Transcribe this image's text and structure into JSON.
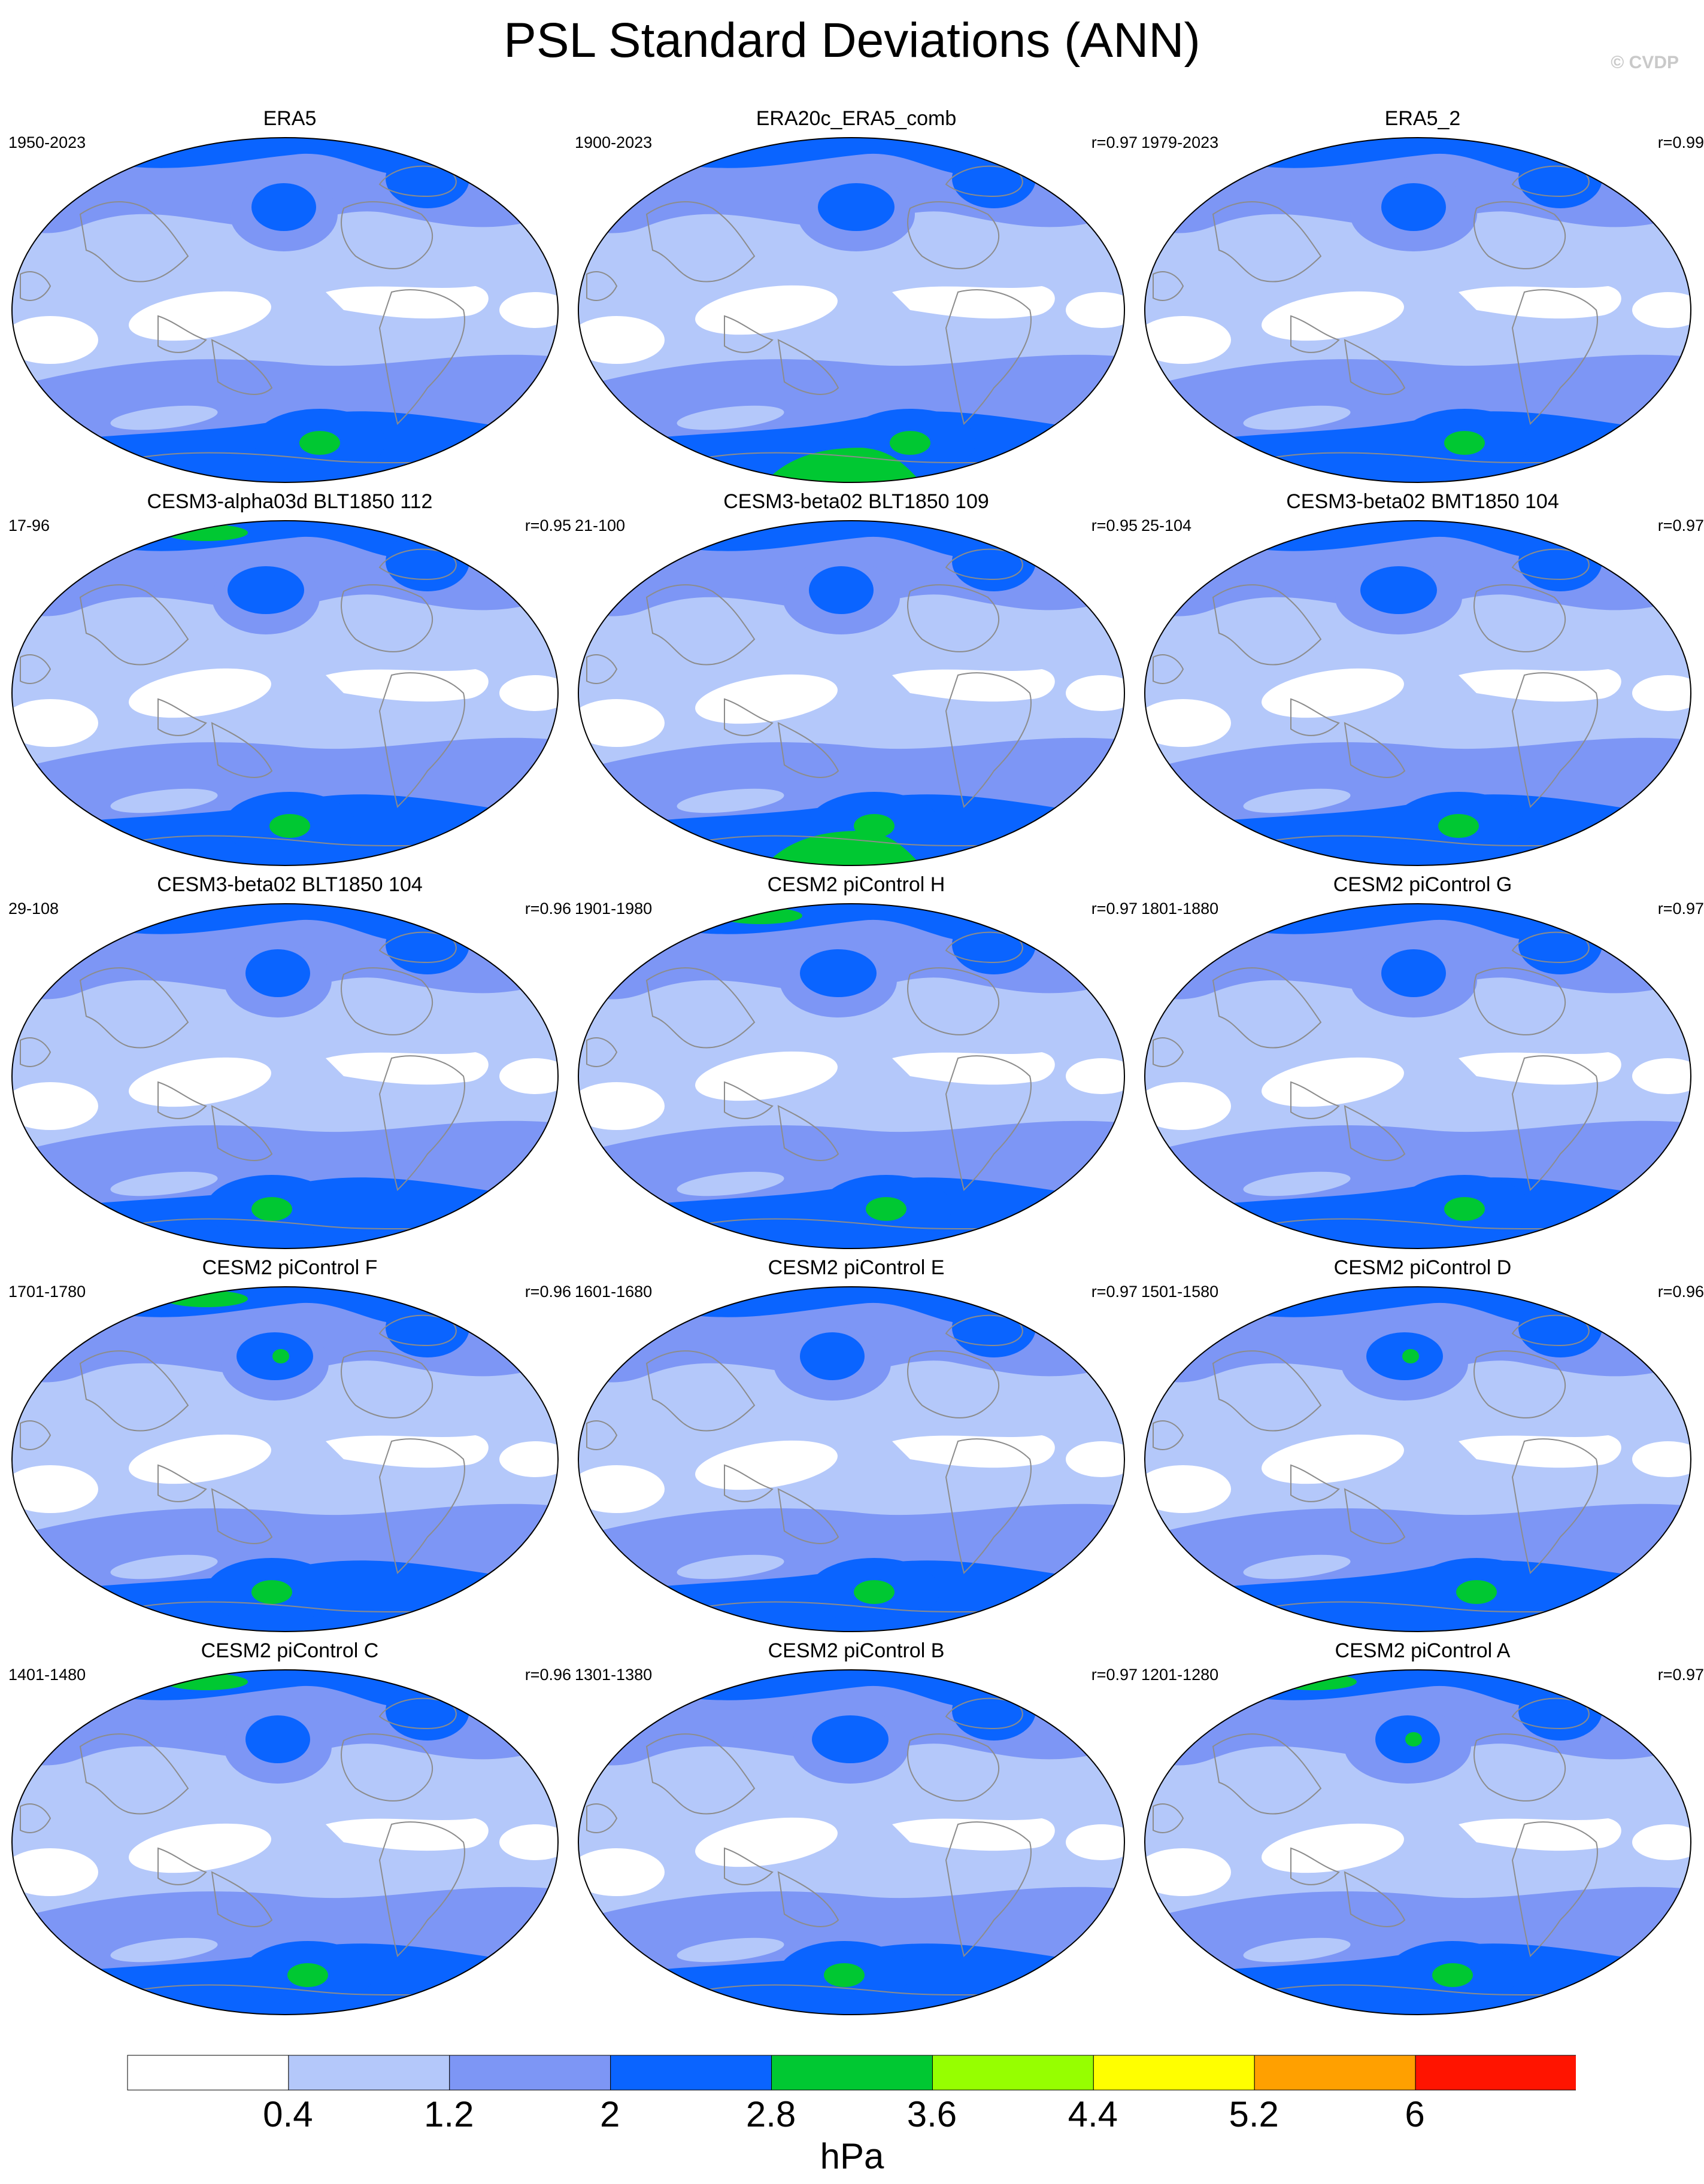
{
  "title": "PSL Standard Deviations (ANN)",
  "copyright": "© CVDP",
  "colors": {
    "levels": [
      "#ffffff",
      "#b4c8fa",
      "#7d96f5",
      "#0a64ff",
      "#00c832",
      "#96ff00",
      "#ffff00",
      "#ffa000",
      "#ff1400"
    ],
    "land_outline": "#8c8c8c",
    "map_border": "#000000"
  },
  "colorbar": {
    "labels": [
      "0.4",
      "1.2",
      "2",
      "2.8",
      "3.6",
      "4.4",
      "5.2",
      "6"
    ],
    "unit": "hPa"
  },
  "panels": [
    {
      "title": "ERA5",
      "period": "1950-2023",
      "corr": ""
    },
    {
      "title": "ERA20c_ERA5_comb",
      "period": "1900-2023",
      "corr": "r=0.97"
    },
    {
      "title": "ERA5_2",
      "period": "1979-2023",
      "corr": "r=0.99"
    },
    {
      "title": "CESM3-alpha03d BLT1850 112",
      "period": "17-96",
      "corr": "r=0.95"
    },
    {
      "title": "CESM3-beta02 BLT1850 109",
      "period": "21-100",
      "corr": "r=0.95"
    },
    {
      "title": "CESM3-beta02 BMT1850 104",
      "period": "25-104",
      "corr": "r=0.97"
    },
    {
      "title": "CESM3-beta02 BLT1850 104",
      "period": "29-108",
      "corr": "r=0.96"
    },
    {
      "title": "CESM2 piControl H",
      "period": "1901-1980",
      "corr": "r=0.97"
    },
    {
      "title": "CESM2 piControl G",
      "period": "1801-1880",
      "corr": "r=0.97"
    },
    {
      "title": "CESM2 piControl F",
      "period": "1701-1780",
      "corr": "r=0.96"
    },
    {
      "title": "CESM2 piControl E",
      "period": "1601-1680",
      "corr": "r=0.97"
    },
    {
      "title": "CESM2 piControl D",
      "period": "1501-1580",
      "corr": "r=0.96"
    },
    {
      "title": "CESM2 piControl C",
      "period": "1401-1480",
      "corr": "r=0.96"
    },
    {
      "title": "CESM2 piControl B",
      "period": "1301-1380",
      "corr": "r=0.97"
    },
    {
      "title": "CESM2 piControl A",
      "period": "1201-1280",
      "corr": "r=0.97"
    }
  ]
}
